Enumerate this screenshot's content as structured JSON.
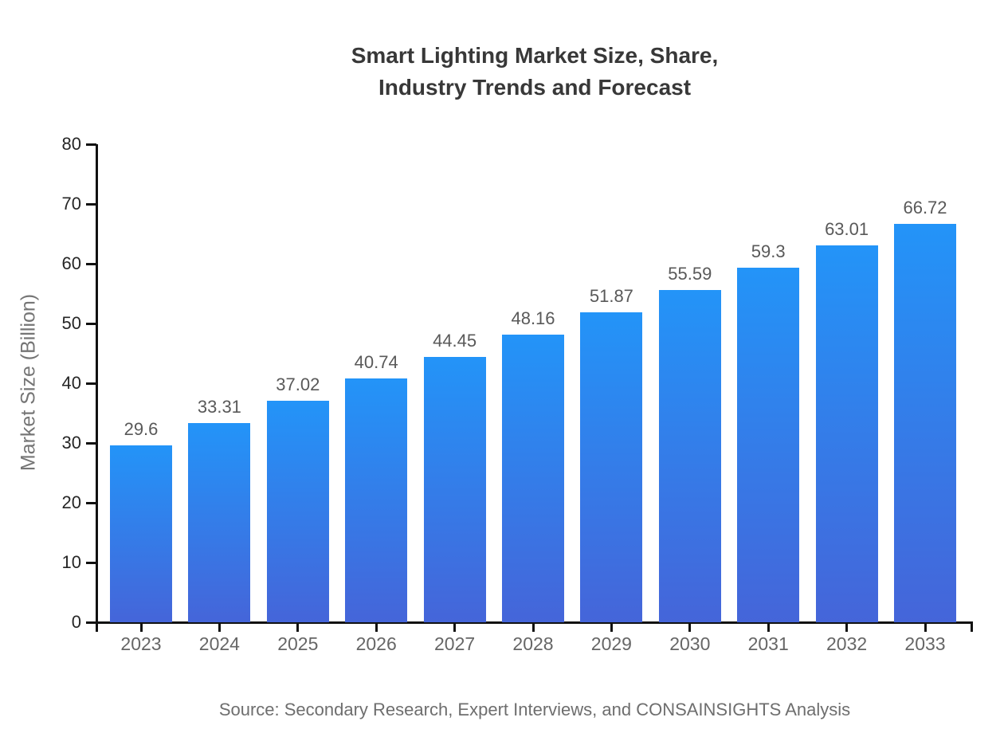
{
  "chart_data": {
    "type": "bar",
    "title": "Smart Lighting Market Size, Share,\nIndustry Trends and Forecast",
    "xlabel": "",
    "ylabel": "Market Size (Billion)",
    "categories": [
      "2023",
      "2024",
      "2025",
      "2026",
      "2027",
      "2028",
      "2029",
      "2030",
      "2031",
      "2032",
      "2033"
    ],
    "values": [
      29.6,
      33.31,
      37.02,
      40.74,
      44.45,
      48.16,
      51.87,
      55.59,
      59.3,
      63.01,
      66.72
    ],
    "value_labels": [
      "29.6",
      "33.31",
      "37.02",
      "40.74",
      "44.45",
      "48.16",
      "51.87",
      "55.59",
      "59.3",
      "63.01",
      "66.72"
    ],
    "ylim": [
      0,
      80
    ],
    "y_ticks": [
      0,
      10,
      20,
      30,
      40,
      50,
      60,
      70,
      80
    ],
    "grid": false,
    "legend_position": "none",
    "bar_gradient_top": "#2394f8",
    "bar_gradient_bottom": "#4565d9",
    "axis_color": "#111111",
    "value_label_color": "#595959",
    "x_tick_label_color": "#666666",
    "y_tick_label_color": "#262626"
  },
  "source": "Source: Secondary Research, Expert Interviews, and CONSAINSIGHTS Analysis"
}
